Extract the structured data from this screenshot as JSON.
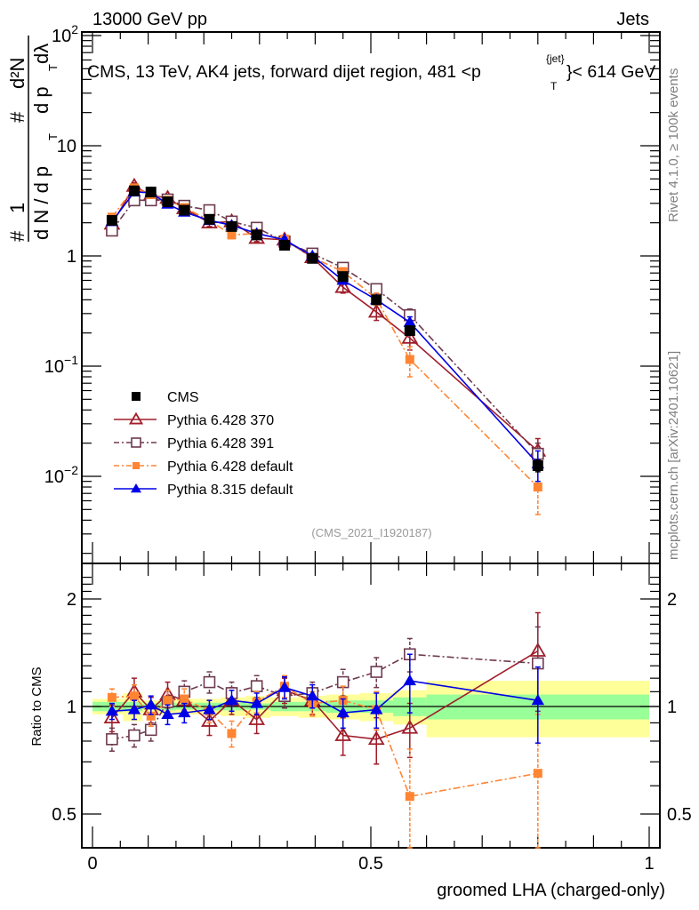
{
  "header": {
    "left": "13000 GeV pp",
    "right": "Jets"
  },
  "side_labels": {
    "rivet": "Rivet 4.1.0, ≥ 100k events",
    "mcplots": "mcplots.cern.ch [arXiv:2401.10621]"
  },
  "chart_data": [
    {
      "type": "line",
      "panel": "main",
      "title": "CMS, 13 TeV, AK4 jets, forward dijet region, 481 <p_T^{jet}< 614 GeV",
      "title_parts": {
        "pre": "CMS, 13 TeV, AK4 jets, forward dijet region, 481 <p",
        "sup": "{jet}",
        "sub": "T",
        "post": "}< 614 GeV"
      },
      "ylabel": "1/N dN/dp_T d²N/dp_T dλ",
      "ylabel_parts": {
        "num1": "1",
        "den1": "d N / d p",
        "sub": "T",
        "num2": "d²N",
        "den2": "d p",
        "den2b": "dλ",
        "hash": "#"
      },
      "yscale": "log",
      "ylim": [
        0.0019,
        100
      ],
      "xlim": [
        -0.02,
        1.02
      ],
      "yticks": [
        {
          "value": 100,
          "label": "10",
          "exp": "2"
        },
        {
          "value": 10,
          "label": "10",
          "exp": ""
        },
        {
          "value": 1,
          "label": "1",
          "exp": ""
        },
        {
          "value": 0.1,
          "label": "10",
          "exp": "−1"
        },
        {
          "value": 0.01,
          "label": "10",
          "exp": "−2"
        }
      ],
      "watermark": "(CMS_2021_I1920187)",
      "legend_position": "bottom-left",
      "x": [
        0.035,
        0.075,
        0.105,
        0.135,
        0.165,
        0.21,
        0.25,
        0.295,
        0.345,
        0.395,
        0.45,
        0.51,
        0.57,
        0.8
      ],
      "series": [
        {
          "name": "CMS",
          "color": "#000000",
          "marker": "square-filled",
          "line": "none",
          "values": [
            2.1,
            3.9,
            3.8,
            3.1,
            2.6,
            2.15,
            1.85,
            1.55,
            1.25,
            0.95,
            0.65,
            0.4,
            0.21,
            0.0125
          ],
          "errors": [
            0.1,
            0.15,
            0.15,
            0.1,
            0.1,
            0.08,
            0.07,
            0.06,
            0.05,
            0.04,
            0.03,
            0.02,
            0.015,
            0.0015
          ]
        },
        {
          "name": "Pythia 6.428 370",
          "color": "#a01d2a",
          "marker": "triangle-open",
          "line": "solid",
          "values": [
            1.95,
            4.3,
            3.55,
            3.35,
            2.7,
            2.0,
            2.05,
            1.45,
            1.4,
            0.97,
            0.52,
            0.31,
            0.18,
            0.017
          ],
          "errors": [
            0.12,
            0.3,
            0.25,
            0.2,
            0.15,
            0.15,
            0.15,
            0.1,
            0.1,
            0.07,
            0.06,
            0.05,
            0.04,
            0.005
          ]
        },
        {
          "name": "Pythia 6.428 391",
          "color": "#6e3a4f",
          "marker": "square-open",
          "line": "dashdot",
          "values": [
            1.7,
            3.2,
            3.2,
            3.25,
            2.85,
            2.6,
            2.05,
            1.8,
            1.35,
            1.05,
            0.78,
            0.5,
            0.29,
            0.016
          ],
          "errors": [
            0.1,
            0.2,
            0.2,
            0.2,
            0.15,
            0.15,
            0.12,
            0.1,
            0.08,
            0.06,
            0.05,
            0.05,
            0.04,
            0.004
          ]
        },
        {
          "name": "Pythia 6.428 default",
          "color": "#ff8533",
          "marker": "square-filled",
          "line": "dashdot",
          "values": [
            2.25,
            4.15,
            3.6,
            3.2,
            2.75,
            2.1,
            1.55,
            1.6,
            1.42,
            0.97,
            0.72,
            0.41,
            0.115,
            0.008
          ],
          "errors": [
            0.1,
            0.3,
            0.25,
            0.2,
            0.15,
            0.15,
            0.12,
            0.1,
            0.1,
            0.07,
            0.06,
            0.05,
            0.035,
            0.0035
          ]
        },
        {
          "name": "Pythia 8.315 default",
          "color": "#0000e6",
          "marker": "triangle-filled",
          "line": "solid",
          "values": [
            2.05,
            3.8,
            3.75,
            2.95,
            2.5,
            2.1,
            1.9,
            1.6,
            1.4,
            1.0,
            0.6,
            0.4,
            0.25,
            0.013
          ],
          "errors": [
            0.1,
            0.2,
            0.2,
            0.15,
            0.12,
            0.1,
            0.1,
            0.08,
            0.07,
            0.05,
            0.04,
            0.03,
            0.03,
            0.004
          ]
        }
      ]
    },
    {
      "type": "line",
      "panel": "ratio",
      "ylabel": "Ratio to CMS",
      "xlabel": "groomed LHA (charged-only)",
      "yscale": "log",
      "ylim": [
        0.4,
        2.3
      ],
      "xlim": [
        -0.02,
        1.02
      ],
      "yticks": [
        {
          "value": 2,
          "label": "2"
        },
        {
          "value": 1,
          "label": "1"
        },
        {
          "value": 0.5,
          "label": "0.5"
        }
      ],
      "xticks": [
        {
          "value": 0,
          "label": "0"
        },
        {
          "value": 0.5,
          "label": "0.5"
        },
        {
          "value": 1,
          "label": "1"
        }
      ],
      "bands": {
        "edges": [
          0.0,
          0.055,
          0.09,
          0.12,
          0.15,
          0.185,
          0.23,
          0.275,
          0.32,
          0.37,
          0.42,
          0.48,
          0.54,
          0.6,
          1.0
        ],
        "inner": [
          0.03,
          0.03,
          0.02,
          0.025,
          0.02,
          0.025,
          0.025,
          0.02,
          0.03,
          0.03,
          0.04,
          0.04,
          0.06,
          0.08
        ],
        "outer": [
          0.05,
          0.09,
          0.04,
          0.05,
          0.05,
          0.05,
          0.06,
          0.07,
          0.06,
          0.07,
          0.08,
          0.09,
          0.11,
          0.18
        ],
        "inner_color": "#99ff99",
        "outer_color": "#ffff99"
      },
      "x": [
        0.035,
        0.075,
        0.105,
        0.135,
        0.165,
        0.21,
        0.25,
        0.295,
        0.345,
        0.395,
        0.45,
        0.51,
        0.57,
        0.8
      ],
      "series": [
        {
          "name": "Pythia 6.428 370",
          "color": "#a01d2a",
          "marker": "triangle-open",
          "line": "solid",
          "values": [
            0.93,
            1.1,
            0.98,
            1.08,
            1.04,
            0.91,
            1.04,
            0.92,
            1.11,
            1.04,
            0.83,
            0.81,
            0.87,
            1.43
          ],
          "errors": [
            0.08,
            0.1,
            0.08,
            0.09,
            0.08,
            0.08,
            0.09,
            0.08,
            0.09,
            0.09,
            0.1,
            0.12,
            0.15,
            0.4
          ]
        },
        {
          "name": "Pythia 6.428 391",
          "color": "#6e3a4f",
          "marker": "square-open",
          "line": "dashdot",
          "values": [
            0.81,
            0.83,
            0.86,
            1.03,
            1.1,
            1.17,
            1.09,
            1.14,
            1.07,
            1.09,
            1.17,
            1.25,
            1.4,
            1.32
          ],
          "errors": [
            0.06,
            0.06,
            0.06,
            0.08,
            0.08,
            0.08,
            0.08,
            0.08,
            0.08,
            0.08,
            0.1,
            0.12,
            0.15,
            0.35
          ]
        },
        {
          "name": "Pythia 6.428 default",
          "color": "#ff8533",
          "marker": "square-filled",
          "line": "dashdot",
          "values": [
            1.06,
            1.07,
            0.94,
            1.04,
            1.05,
            0.97,
            0.84,
            1.03,
            1.14,
            1.02,
            1.04,
            0.98,
            0.56,
            0.65
          ],
          "errors": [
            0.06,
            0.08,
            0.06,
            0.07,
            0.07,
            0.07,
            0.07,
            0.07,
            0.08,
            0.08,
            0.1,
            0.12,
            0.2,
            0.3
          ]
        },
        {
          "name": "Pythia 8.315 default",
          "color": "#0000e6",
          "marker": "triangle-filled",
          "line": "solid",
          "values": [
            0.97,
            0.98,
            1.01,
            0.95,
            0.96,
            0.98,
            1.04,
            1.02,
            1.13,
            1.07,
            0.96,
            0.98,
            1.18,
            1.04
          ],
          "errors": [
            0.05,
            0.06,
            0.06,
            0.06,
            0.06,
            0.06,
            0.07,
            0.07,
            0.08,
            0.08,
            0.09,
            0.11,
            0.22,
            0.25
          ]
        }
      ]
    }
  ],
  "legend": [
    {
      "label": "CMS"
    },
    {
      "label": "Pythia 6.428 370"
    },
    {
      "label": "Pythia 6.428 391"
    },
    {
      "label": "Pythia 6.428 default"
    },
    {
      "label": "Pythia 8.315 default"
    }
  ]
}
